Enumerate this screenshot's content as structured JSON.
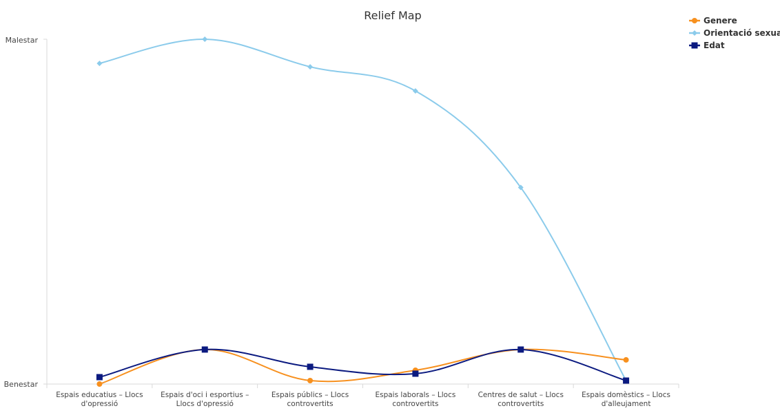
{
  "chart_data": {
    "type": "line",
    "title": "Relief Map",
    "y_tick_labels": {
      "top": "Malestar",
      "bottom": "Benestar"
    },
    "ylim": [
      0,
      100
    ],
    "categories": [
      [
        "Espais educatius – Llocs",
        "d'opressió"
      ],
      [
        "Espais d'oci i esportius –",
        "Llocs d'opressió"
      ],
      [
        "Espais públics – Llocs",
        "controvertits"
      ],
      [
        "Espais laborals – Llocs",
        "controvertits"
      ],
      [
        "Centres de salut – Llocs",
        "controvertits"
      ],
      [
        "Espais domèstics – Llocs",
        "d'alleujament"
      ]
    ],
    "series": [
      {
        "name": "Genere",
        "color": "#F7901E",
        "marker": "circle",
        "values": [
          0,
          10,
          1,
          4,
          10,
          7
        ]
      },
      {
        "name": "Orientació sexual",
        "color": "#8BCBEB",
        "marker": "diamond",
        "values": [
          93,
          100,
          92,
          85,
          57,
          1
        ]
      },
      {
        "name": "Edat",
        "color": "#0B1A80",
        "marker": "square",
        "values": [
          2,
          10,
          5,
          3,
          10,
          1
        ]
      }
    ],
    "legend_position": "top-right",
    "grid": false
  }
}
